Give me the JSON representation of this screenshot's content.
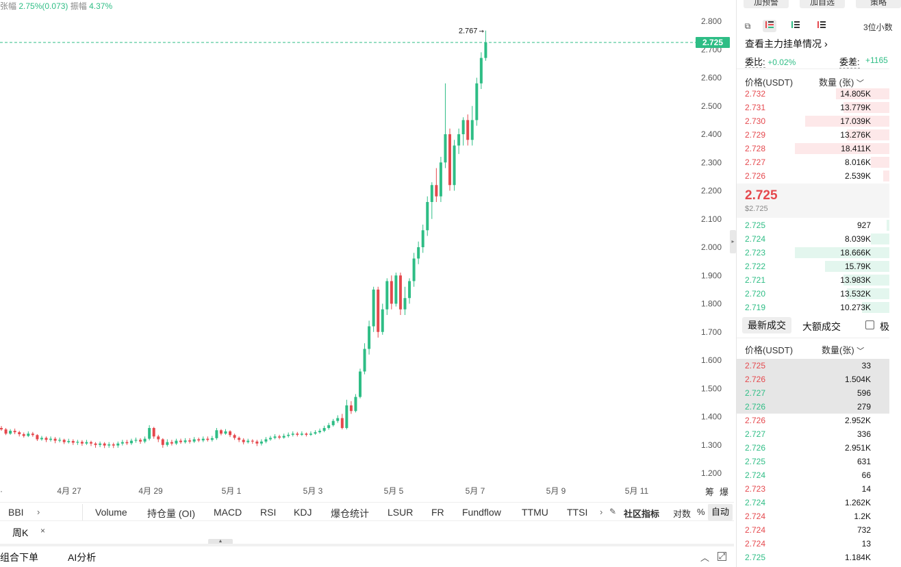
{
  "top_stats": {
    "change_label": "张幅",
    "change_value": "2.75%(0.073)",
    "amplitude_label": "振幅",
    "amplitude_value": "4.37%"
  },
  "chart_data": {
    "type": "candlestick",
    "price_axis_ticks": [
      "2.800",
      "2.700",
      "2.600",
      "2.500",
      "2.400",
      "2.300",
      "2.200",
      "2.100",
      "2.000",
      "1.900",
      "1.800",
      "1.700",
      "1.600",
      "1.500",
      "1.400",
      "1.300",
      "1.200"
    ],
    "ylim": [
      1.2,
      2.8
    ],
    "date_ticks": [
      "4月 27",
      "4月 29",
      "5月 1",
      "5月 3",
      "5月 5",
      "5月 7",
      "5月 9",
      "5月 11"
    ],
    "last_price": "2.725",
    "high_marker": "2.767",
    "axis_buttons": [
      "筹",
      "爆"
    ],
    "colors": {
      "up": "#2ebd85",
      "down": "#e5484d"
    },
    "candles": [
      [
        1.36,
        1.355,
        1.367,
        1.35
      ],
      [
        1.355,
        1.34,
        1.36,
        1.335
      ],
      [
        1.34,
        1.35,
        1.356,
        1.336
      ],
      [
        1.35,
        1.345,
        1.358,
        1.338
      ],
      [
        1.345,
        1.338,
        1.35,
        1.33
      ],
      [
        1.338,
        1.332,
        1.344,
        1.326
      ],
      [
        1.332,
        1.34,
        1.348,
        1.328
      ],
      [
        1.34,
        1.335,
        1.346,
        1.329
      ],
      [
        1.335,
        1.32,
        1.338,
        1.314
      ],
      [
        1.32,
        1.325,
        1.332,
        1.315
      ],
      [
        1.325,
        1.318,
        1.33,
        1.31
      ],
      [
        1.318,
        1.322,
        1.33,
        1.312
      ],
      [
        1.322,
        1.315,
        1.328,
        1.306
      ],
      [
        1.315,
        1.318,
        1.326,
        1.309
      ],
      [
        1.318,
        1.31,
        1.322,
        1.303
      ],
      [
        1.31,
        1.314,
        1.322,
        1.305
      ],
      [
        1.314,
        1.308,
        1.32,
        1.3
      ],
      [
        1.308,
        1.311,
        1.318,
        1.3
      ],
      [
        1.311,
        1.305,
        1.317,
        1.297
      ],
      [
        1.305,
        1.31,
        1.318,
        1.3
      ],
      [
        1.31,
        1.305,
        1.315,
        1.296
      ],
      [
        1.305,
        1.3,
        1.31,
        1.29
      ],
      [
        1.3,
        1.305,
        1.312,
        1.292
      ],
      [
        1.305,
        1.298,
        1.31,
        1.289
      ],
      [
        1.298,
        1.302,
        1.31,
        1.29
      ],
      [
        1.302,
        1.298,
        1.308,
        1.289
      ],
      [
        1.298,
        1.305,
        1.312,
        1.29
      ],
      [
        1.305,
        1.31,
        1.318,
        1.298
      ],
      [
        1.31,
        1.306,
        1.318,
        1.3
      ],
      [
        1.306,
        1.315,
        1.322,
        1.3
      ],
      [
        1.315,
        1.318,
        1.326,
        1.308
      ],
      [
        1.318,
        1.312,
        1.324,
        1.304
      ],
      [
        1.312,
        1.322,
        1.33,
        1.306
      ],
      [
        1.322,
        1.36,
        1.37,
        1.316
      ],
      [
        1.36,
        1.33,
        1.364,
        1.322
      ],
      [
        1.33,
        1.32,
        1.336,
        1.31
      ],
      [
        1.32,
        1.3,
        1.324,
        1.29
      ],
      [
        1.3,
        1.31,
        1.32,
        1.294
      ],
      [
        1.31,
        1.305,
        1.318,
        1.298
      ],
      [
        1.305,
        1.315,
        1.322,
        1.3
      ],
      [
        1.315,
        1.31,
        1.322,
        1.304
      ],
      [
        1.31,
        1.316,
        1.324,
        1.305
      ],
      [
        1.316,
        1.312,
        1.324,
        1.305
      ],
      [
        1.312,
        1.32,
        1.328,
        1.307
      ],
      [
        1.32,
        1.316,
        1.326,
        1.31
      ],
      [
        1.316,
        1.322,
        1.33,
        1.31
      ],
      [
        1.322,
        1.318,
        1.33,
        1.312
      ],
      [
        1.318,
        1.324,
        1.332,
        1.312
      ],
      [
        1.324,
        1.352,
        1.36,
        1.318
      ],
      [
        1.352,
        1.34,
        1.356,
        1.334
      ],
      [
        1.34,
        1.348,
        1.356,
        1.336
      ],
      [
        1.348,
        1.335,
        1.352,
        1.328
      ],
      [
        1.335,
        1.325,
        1.34,
        1.318
      ],
      [
        1.325,
        1.318,
        1.33,
        1.31
      ],
      [
        1.318,
        1.31,
        1.324,
        1.302
      ],
      [
        1.31,
        1.315,
        1.322,
        1.305
      ],
      [
        1.315,
        1.312,
        1.32,
        1.304
      ],
      [
        1.312,
        1.305,
        1.318,
        1.296
      ],
      [
        1.305,
        1.312,
        1.32,
        1.298
      ],
      [
        1.312,
        1.32,
        1.328,
        1.306
      ],
      [
        1.32,
        1.325,
        1.332,
        1.315
      ],
      [
        1.325,
        1.33,
        1.338,
        1.32
      ],
      [
        1.33,
        1.326,
        1.336,
        1.32
      ],
      [
        1.326,
        1.332,
        1.34,
        1.322
      ],
      [
        1.332,
        1.336,
        1.344,
        1.326
      ],
      [
        1.336,
        1.34,
        1.348,
        1.33
      ],
      [
        1.34,
        1.336,
        1.346,
        1.33
      ],
      [
        1.336,
        1.34,
        1.348,
        1.332
      ],
      [
        1.34,
        1.336,
        1.344,
        1.33
      ],
      [
        1.336,
        1.34,
        1.348,
        1.332
      ],
      [
        1.34,
        1.345,
        1.352,
        1.336
      ],
      [
        1.345,
        1.35,
        1.358,
        1.34
      ],
      [
        1.35,
        1.36,
        1.368,
        1.345
      ],
      [
        1.36,
        1.37,
        1.378,
        1.354
      ],
      [
        1.37,
        1.385,
        1.392,
        1.365
      ],
      [
        1.385,
        1.395,
        1.405,
        1.378
      ],
      [
        1.395,
        1.36,
        1.41,
        1.355
      ],
      [
        1.36,
        1.44,
        1.46,
        1.355
      ],
      [
        1.44,
        1.42,
        1.455,
        1.41
      ],
      [
        1.42,
        1.47,
        1.48,
        1.415
      ],
      [
        1.47,
        1.56,
        1.57,
        1.465
      ],
      [
        1.56,
        1.64,
        1.66,
        1.55
      ],
      [
        1.64,
        1.72,
        1.74,
        1.62
      ],
      [
        1.72,
        1.85,
        1.86,
        1.7
      ],
      [
        1.85,
        1.7,
        1.86,
        1.68
      ],
      [
        1.7,
        1.78,
        1.8,
        1.69
      ],
      [
        1.78,
        1.88,
        1.89,
        1.76
      ],
      [
        1.88,
        1.8,
        1.9,
        1.78
      ],
      [
        1.8,
        1.9,
        1.91,
        1.79
      ],
      [
        1.9,
        1.78,
        1.91,
        1.76
      ],
      [
        1.78,
        1.82,
        1.86,
        1.76
      ],
      [
        1.82,
        1.88,
        1.89,
        1.8
      ],
      [
        1.88,
        1.96,
        1.98,
        1.86
      ],
      [
        1.96,
        2.0,
        2.02,
        1.94
      ],
      [
        2.0,
        2.06,
        2.08,
        1.98
      ],
      [
        2.06,
        2.16,
        2.18,
        2.04
      ],
      [
        2.16,
        2.22,
        2.23,
        2.1
      ],
      [
        2.22,
        2.18,
        2.28,
        2.16
      ],
      [
        2.18,
        2.3,
        2.32,
        2.16
      ],
      [
        2.3,
        2.4,
        2.58,
        2.28
      ],
      [
        2.4,
        2.22,
        2.42,
        2.2
      ],
      [
        2.22,
        2.36,
        2.38,
        2.2
      ],
      [
        2.36,
        2.4,
        2.42,
        2.33
      ],
      [
        2.4,
        2.45,
        2.46,
        2.36
      ],
      [
        2.45,
        2.38,
        2.47,
        2.36
      ],
      [
        2.38,
        2.45,
        2.5,
        2.36
      ],
      [
        2.45,
        2.58,
        2.6,
        2.43
      ],
      [
        2.58,
        2.67,
        2.69,
        2.56
      ],
      [
        2.67,
        2.725,
        2.767,
        2.66
      ]
    ]
  },
  "indicator_bar": {
    "left_label": "BBI",
    "items": [
      "Volume",
      "持仓量 (OI)",
      "MACD",
      "RSI",
      "KDJ",
      "爆仓统计",
      "LSUR",
      "FR",
      "Fundflow",
      "TTMU",
      "TTSI"
    ],
    "community": "社区指标",
    "log_label": "对数",
    "pct_label": "%",
    "auto_label": "自动"
  },
  "period": {
    "label": "周K",
    "close": "×"
  },
  "bottom_tabs": {
    "combo_order": "组合下单",
    "ai": "AI分析"
  },
  "right_panel": {
    "top_buttons": [
      "加预警",
      "加自选",
      "策略"
    ],
    "decimals": "3位小数",
    "view_large_orders": "查看主力挂单情况",
    "ratio_label": "委比:",
    "ratio_value": "+0.02%",
    "diff_label": "委差:",
    "diff_value": "+1165",
    "ob_header": {
      "price": "价格(USDT)",
      "qty": "数量 (张)"
    },
    "asks": [
      {
        "price": "2.732",
        "qty": "14.805K",
        "depth": 0.35
      },
      {
        "price": "2.731",
        "qty": "13.779K",
        "depth": 0.3
      },
      {
        "price": "2.730",
        "qty": "17.039K",
        "depth": 0.55
      },
      {
        "price": "2.729",
        "qty": "13.276K",
        "depth": 0.28
      },
      {
        "price": "2.728",
        "qty": "18.411K",
        "depth": 0.62
      },
      {
        "price": "2.727",
        "qty": "8.016K",
        "depth": 0.12
      },
      {
        "price": "2.726",
        "qty": "2.539K",
        "depth": 0.04
      }
    ],
    "mid_price": "2.725",
    "mid_price_usd": "$2.725",
    "bids": [
      {
        "price": "2.725",
        "qty": "927",
        "depth": 0.02
      },
      {
        "price": "2.724",
        "qty": "8.039K",
        "depth": 0.12
      },
      {
        "price": "2.723",
        "qty": "18.666K",
        "depth": 0.62
      },
      {
        "price": "2.722",
        "qty": "15.79K",
        "depth": 0.42
      },
      {
        "price": "2.721",
        "qty": "13.983K",
        "depth": 0.3
      },
      {
        "price": "2.720",
        "qty": "13.532K",
        "depth": 0.28
      },
      {
        "price": "2.719",
        "qty": "10.273K",
        "depth": 0.18
      }
    ],
    "trade_tabs": {
      "latest": "最新成交",
      "large": "大额成交",
      "extreme": "极"
    },
    "trade_header": {
      "price": "价格(USDT)",
      "qty": "数量(张)"
    },
    "trades": [
      {
        "price": "2.725",
        "qty": "33",
        "side": "sell",
        "hl": true
      },
      {
        "price": "2.726",
        "qty": "1.504K",
        "side": "sell",
        "hl": true
      },
      {
        "price": "2.727",
        "qty": "596",
        "side": "buy",
        "hl": true
      },
      {
        "price": "2.726",
        "qty": "279",
        "side": "buy",
        "hl": true
      },
      {
        "price": "2.726",
        "qty": "2.952K",
        "side": "sell",
        "hl": false
      },
      {
        "price": "2.727",
        "qty": "336",
        "side": "buy",
        "hl": false
      },
      {
        "price": "2.726",
        "qty": "2.951K",
        "side": "buy",
        "hl": false
      },
      {
        "price": "2.725",
        "qty": "631",
        "side": "buy",
        "hl": false
      },
      {
        "price": "2.724",
        "qty": "66",
        "side": "buy",
        "hl": false
      },
      {
        "price": "2.723",
        "qty": "14",
        "side": "sell",
        "hl": false
      },
      {
        "price": "2.724",
        "qty": "1.262K",
        "side": "buy",
        "hl": false
      },
      {
        "price": "2.724",
        "qty": "1.2K",
        "side": "sell",
        "hl": false
      },
      {
        "price": "2.724",
        "qty": "732",
        "side": "sell",
        "hl": false
      },
      {
        "price": "2.724",
        "qty": "13",
        "side": "sell",
        "hl": false
      },
      {
        "price": "2.725",
        "qty": "1.184K",
        "side": "buy",
        "hl": false
      }
    ]
  }
}
